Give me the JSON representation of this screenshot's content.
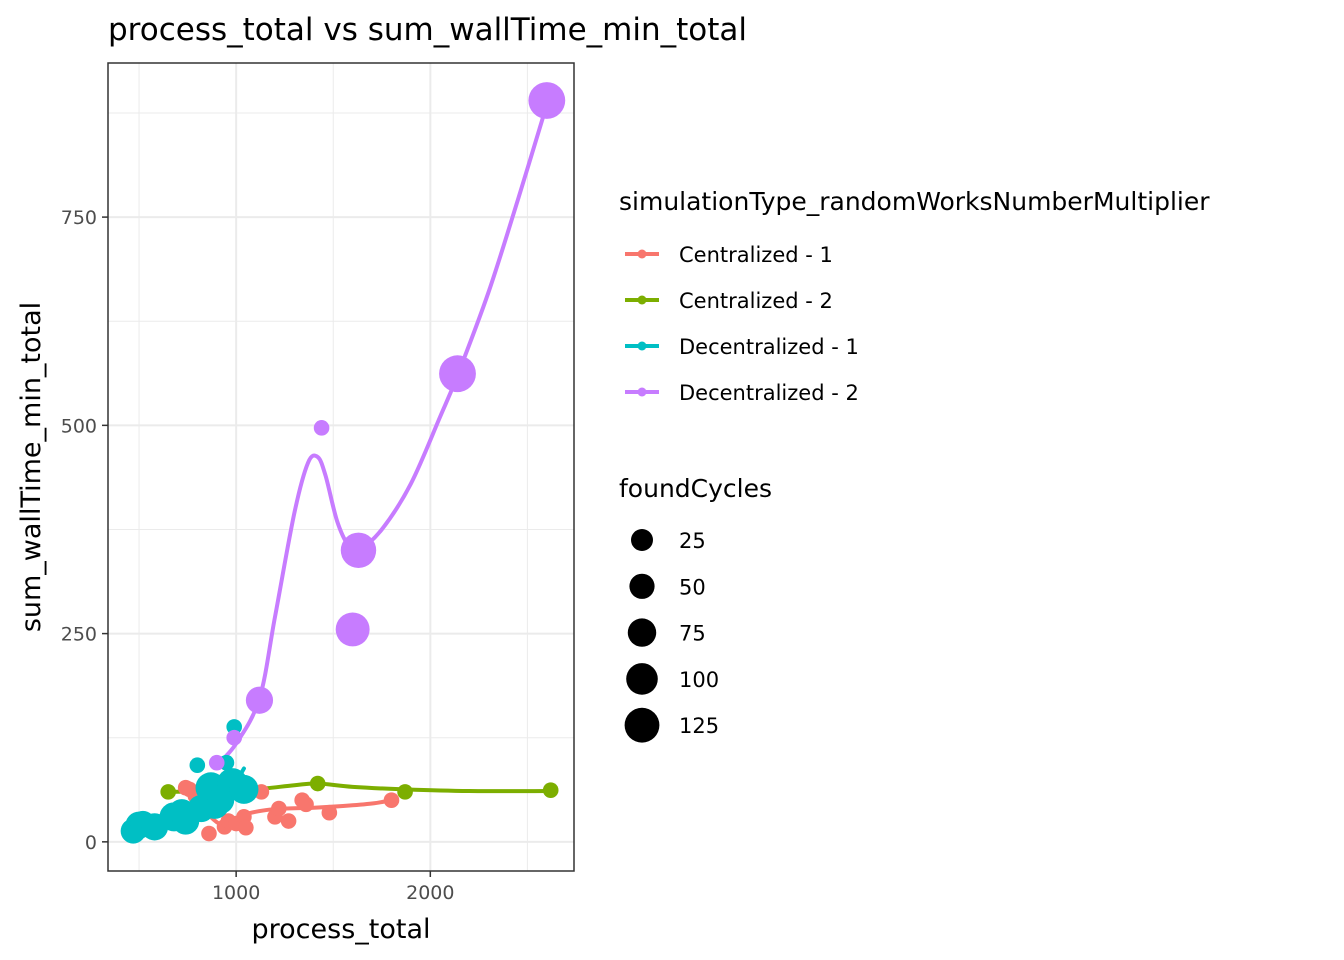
{
  "chart_data": {
    "type": "scatter",
    "title": "process_total  vs  sum_wallTime_min_total",
    "xlabel": "process_total",
    "ylabel": "sum_wallTime_min_total",
    "xlim": [
      340,
      2740
    ],
    "ylim": [
      -35,
      935
    ],
    "xticks": [
      1000,
      2000
    ],
    "xtick_labels": [
      "1000",
      "2000"
    ],
    "yticks": [
      0,
      250,
      500,
      750
    ],
    "ytick_labels": [
      "0",
      "250",
      "500",
      "750"
    ],
    "grid": true,
    "legend_position": "right",
    "color_legend": {
      "title": "simulationType_randomWorksNumberMultiplier",
      "entries": [
        "Centralized - 1",
        "Centralized - 2",
        "Decentralized - 1",
        "Decentralized - 2"
      ]
    },
    "size_legend": {
      "title": "foundCycles",
      "values": [
        25,
        50,
        75,
        100,
        125
      ],
      "labels": [
        "25",
        "50",
        "75",
        "100",
        "125"
      ]
    },
    "series": [
      {
        "name": "Centralized - 1",
        "color": "#F8766D",
        "points": [
          {
            "x": 740,
            "y": 65,
            "size": 3
          },
          {
            "x": 760,
            "y": 63,
            "size": 3
          },
          {
            "x": 790,
            "y": 55,
            "size": 3
          },
          {
            "x": 830,
            "y": 50,
            "size": 3
          },
          {
            "x": 860,
            "y": 10,
            "size": 3
          },
          {
            "x": 900,
            "y": 45,
            "size": 3
          },
          {
            "x": 940,
            "y": 18,
            "size": 3
          },
          {
            "x": 960,
            "y": 25,
            "size": 3
          },
          {
            "x": 1000,
            "y": 22,
            "size": 3
          },
          {
            "x": 1040,
            "y": 30,
            "size": 3
          },
          {
            "x": 1050,
            "y": 17,
            "size": 3
          },
          {
            "x": 1130,
            "y": 60,
            "size": 3
          },
          {
            "x": 1200,
            "y": 30,
            "size": 3
          },
          {
            "x": 1220,
            "y": 40,
            "size": 3
          },
          {
            "x": 1270,
            "y": 25,
            "size": 3
          },
          {
            "x": 1340,
            "y": 50,
            "size": 3
          },
          {
            "x": 1360,
            "y": 45,
            "size": 3
          },
          {
            "x": 1480,
            "y": 35,
            "size": 3
          },
          {
            "x": 1800,
            "y": 50,
            "size": 3
          }
        ],
        "smooth": [
          [
            740,
            63
          ],
          [
            800,
            48
          ],
          [
            860,
            32
          ],
          [
            920,
            21
          ],
          [
            980,
            22
          ],
          [
            1050,
            33
          ],
          [
            1150,
            38
          ],
          [
            1250,
            40
          ],
          [
            1400,
            41
          ],
          [
            1550,
            43
          ],
          [
            1700,
            46
          ],
          [
            1800,
            50
          ]
        ]
      },
      {
        "name": "Centralized - 2",
        "color": "#7CAE00",
        "points": [
          {
            "x": 650,
            "y": 60,
            "size": 3
          },
          {
            "x": 1420,
            "y": 70,
            "size": 3
          },
          {
            "x": 1870,
            "y": 60,
            "size": 3
          },
          {
            "x": 2620,
            "y": 62,
            "size": 3
          }
        ],
        "smooth": [
          [
            650,
            60
          ],
          [
            900,
            61
          ],
          [
            1100,
            63
          ],
          [
            1300,
            68
          ],
          [
            1420,
            70
          ],
          [
            1600,
            66
          ],
          [
            1870,
            63
          ],
          [
            2200,
            61
          ],
          [
            2620,
            61
          ]
        ]
      },
      {
        "name": "Decentralized - 1",
        "color": "#00BFC4",
        "points": [
          {
            "x": 470,
            "y": 13,
            "size": 10
          },
          {
            "x": 500,
            "y": 20,
            "size": 12
          },
          {
            "x": 520,
            "y": 22,
            "size": 10
          },
          {
            "x": 580,
            "y": 18,
            "size": 12
          },
          {
            "x": 680,
            "y": 30,
            "size": 14
          },
          {
            "x": 720,
            "y": 35,
            "size": 12
          },
          {
            "x": 740,
            "y": 25,
            "size": 12
          },
          {
            "x": 800,
            "y": 92,
            "size": 3
          },
          {
            "x": 820,
            "y": 40,
            "size": 12
          },
          {
            "x": 870,
            "y": 65,
            "size": 16
          },
          {
            "x": 890,
            "y": 45,
            "size": 14
          },
          {
            "x": 920,
            "y": 50,
            "size": 12
          },
          {
            "x": 950,
            "y": 95,
            "size": 3
          },
          {
            "x": 980,
            "y": 70,
            "size": 16
          },
          {
            "x": 990,
            "y": 138,
            "size": 3
          },
          {
            "x": 1040,
            "y": 63,
            "size": 14
          }
        ],
        "smooth": [
          [
            470,
            14
          ],
          [
            600,
            22
          ],
          [
            750,
            35
          ],
          [
            880,
            55
          ],
          [
            1000,
            75
          ],
          [
            1040,
            88
          ]
        ]
      },
      {
        "name": "Decentralized - 2",
        "color": "#C77CFF",
        "points": [
          {
            "x": 900,
            "y": 95,
            "size": 3
          },
          {
            "x": 990,
            "y": 125,
            "size": 3
          },
          {
            "x": 1120,
            "y": 170,
            "size": 12
          },
          {
            "x": 1440,
            "y": 497,
            "size": 3
          },
          {
            "x": 1600,
            "y": 255,
            "size": 20
          },
          {
            "x": 1630,
            "y": 350,
            "size": 22
          },
          {
            "x": 2140,
            "y": 562,
            "size": 24
          },
          {
            "x": 2600,
            "y": 890,
            "size": 24
          }
        ],
        "smooth": [
          [
            900,
            92
          ],
          [
            1000,
            118
          ],
          [
            1120,
            172
          ],
          [
            1200,
            270
          ],
          [
            1300,
            395
          ],
          [
            1370,
            455
          ],
          [
            1420,
            462
          ],
          [
            1460,
            440
          ],
          [
            1520,
            385
          ],
          [
            1580,
            355
          ],
          [
            1630,
            350
          ],
          [
            1750,
            375
          ],
          [
            1900,
            430
          ],
          [
            2050,
            510
          ],
          [
            2140,
            560
          ],
          [
            2300,
            660
          ],
          [
            2450,
            770
          ],
          [
            2600,
            885
          ]
        ]
      }
    ]
  }
}
